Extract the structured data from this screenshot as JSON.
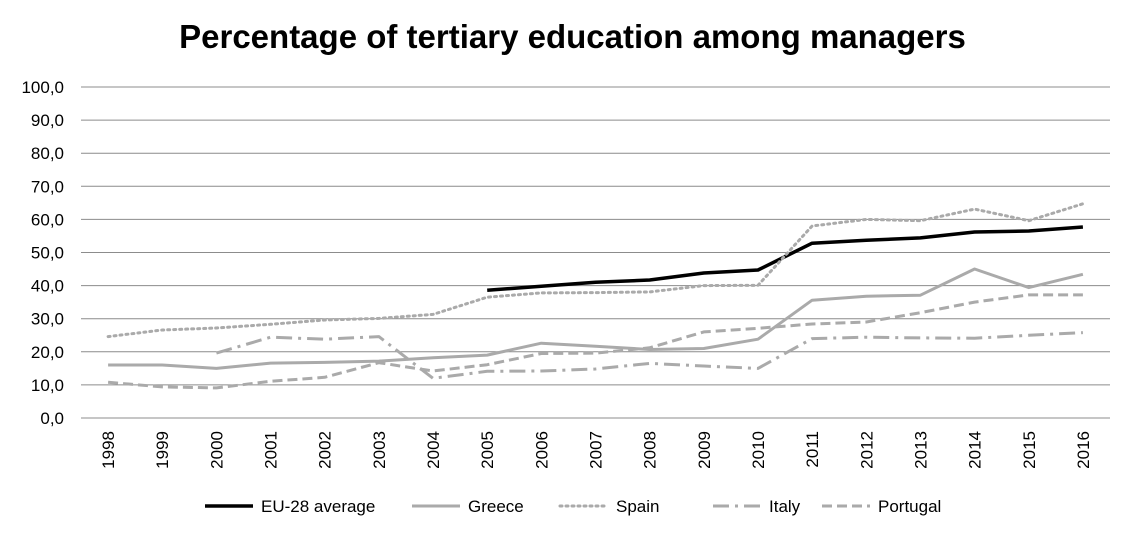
{
  "chart_data": {
    "type": "line",
    "title": "Percentage of tertiary education among managers",
    "xlabel": "",
    "ylabel": "",
    "x": [
      "1998",
      "1999",
      "2000",
      "2001",
      "2002",
      "2003",
      "2004",
      "2005",
      "2006",
      "2007",
      "2008",
      "2009",
      "2010",
      "2011",
      "2012",
      "2013",
      "2014",
      "2015",
      "2016"
    ],
    "y_ticks": [
      "0,0",
      "10,0",
      "20,0",
      "30,0",
      "40,0",
      "50,0",
      "60,0",
      "70,0",
      "80,0",
      "90,0",
      "100,0"
    ],
    "ylim": [
      0,
      100
    ],
    "grid": "horizontal",
    "legend_position": "bottom",
    "series": [
      {
        "name": "EU-28 average",
        "color": "#000000",
        "dash": "solid",
        "values": [
          null,
          null,
          null,
          null,
          null,
          null,
          null,
          38.6,
          39.8,
          41.0,
          41.7,
          43.8,
          44.7,
          52.8,
          53.7,
          54.4,
          56.2,
          56.5,
          57.7
        ]
      },
      {
        "name": "Greece",
        "color": "#aaaaaa",
        "dash": "solid",
        "values": [
          16.0,
          16.0,
          15.0,
          16.6,
          16.8,
          17.2,
          18.2,
          19.0,
          22.6,
          21.7,
          20.7,
          21.0,
          23.8,
          35.6,
          36.8,
          37.1,
          45.0,
          39.4,
          43.4
        ]
      },
      {
        "name": "Spain",
        "color": "#aaaaaa",
        "dash": "dotted",
        "values": [
          24.6,
          26.6,
          27.2,
          28.3,
          29.6,
          30.1,
          31.3,
          36.5,
          37.8,
          37.9,
          38.1,
          40.0,
          40.1,
          58.0,
          60.0,
          59.6,
          63.1,
          59.6,
          64.7
        ]
      },
      {
        "name": "Italy",
        "color": "#aaaaaa",
        "dash": "dashdot",
        "values": [
          null,
          null,
          19.6,
          24.4,
          23.8,
          24.6,
          12.0,
          14.1,
          14.2,
          14.8,
          16.5,
          15.7,
          15.0,
          24.0,
          24.4,
          24.2,
          24.1,
          25.0,
          25.8
        ]
      },
      {
        "name": "Portugal",
        "color": "#aaaaaa",
        "dash": "dashed",
        "values": [
          10.8,
          9.4,
          9.1,
          11.1,
          12.3,
          16.7,
          14.2,
          16.1,
          19.5,
          19.6,
          21.2,
          26.0,
          27.1,
          28.4,
          29.0,
          31.8,
          35.0,
          37.2,
          37.2
        ]
      }
    ]
  }
}
